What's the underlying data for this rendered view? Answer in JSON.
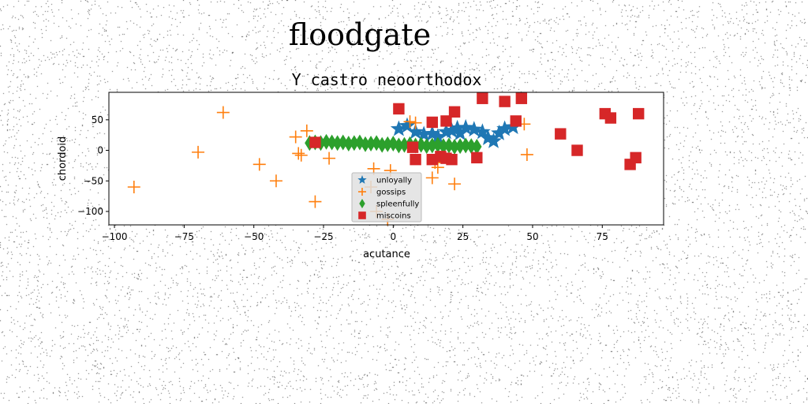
{
  "figure": {
    "suptitle": "floodgate"
  },
  "chart_data": {
    "type": "scatter",
    "title": "Y castro neoorthodox",
    "xlabel": "acutance",
    "ylabel": "chordoid",
    "xlim": [
      -102,
      97
    ],
    "ylim": [
      -122,
      95
    ],
    "xticks": [
      -100,
      -75,
      -50,
      -25,
      0,
      25,
      50,
      75
    ],
    "yticks": [
      50,
      0,
      -50,
      -100
    ],
    "grid": false,
    "legend": "lower-center",
    "series": [
      {
        "name": "unloyally",
        "marker": "star",
        "color": "#1f77b4",
        "x": [
          2,
          5,
          8,
          11,
          14,
          16,
          19,
          21,
          23,
          24,
          26,
          29,
          32,
          34,
          36,
          38,
          40,
          43
        ],
        "y": [
          35,
          40,
          30,
          26,
          27,
          22,
          30,
          32,
          36,
          28,
          37,
          34,
          30,
          20,
          15,
          28,
          35,
          38
        ]
      },
      {
        "name": "gossips",
        "marker": "plus",
        "color": "#ff7f0e",
        "x": [
          -93,
          -70,
          -61,
          -48,
          -42,
          -35,
          -34,
          -33,
          -31,
          -28,
          -23,
          -8,
          -7,
          -6,
          -2,
          -1,
          6,
          8,
          14,
          15,
          16,
          22,
          47,
          48
        ],
        "y": [
          -60,
          -3,
          62,
          -23,
          -50,
          22,
          -5,
          -8,
          32,
          -84,
          -13,
          -60,
          -30,
          -100,
          -113,
          -33,
          47,
          45,
          -45,
          -20,
          -28,
          -55,
          43,
          -7
        ]
      },
      {
        "name": "spleenfully",
        "marker": "diamond",
        "color": "#2ca02c",
        "x": [
          -30,
          -28,
          -26,
          -24,
          -22,
          -20,
          -18,
          -16,
          -14,
          -12,
          -10,
          -8,
          -6,
          -4,
          -2,
          0,
          2,
          4,
          6,
          8,
          10,
          12,
          14,
          16,
          18,
          20,
          22,
          24,
          26,
          28,
          30
        ],
        "y": [
          12,
          13,
          12,
          14,
          13,
          12,
          13,
          11,
          12,
          13,
          10,
          11,
          12,
          9,
          10,
          11,
          8,
          9,
          10,
          8,
          9,
          7,
          8,
          9,
          7,
          8,
          6,
          7,
          8,
          7,
          6
        ]
      },
      {
        "name": "miscoins",
        "marker": "square",
        "color": "#d62728",
        "x": [
          -28,
          2,
          7,
          8,
          14,
          14,
          17,
          19,
          19,
          21,
          22,
          30,
          32,
          40,
          44,
          46,
          60,
          66,
          76,
          78,
          85,
          87,
          88
        ],
        "y": [
          13,
          68,
          5,
          -15,
          -15,
          46,
          -10,
          -13,
          48,
          -15,
          63,
          -12,
          85,
          80,
          48,
          85,
          27,
          0,
          60,
          53,
          -23,
          -12,
          60
        ]
      }
    ]
  }
}
